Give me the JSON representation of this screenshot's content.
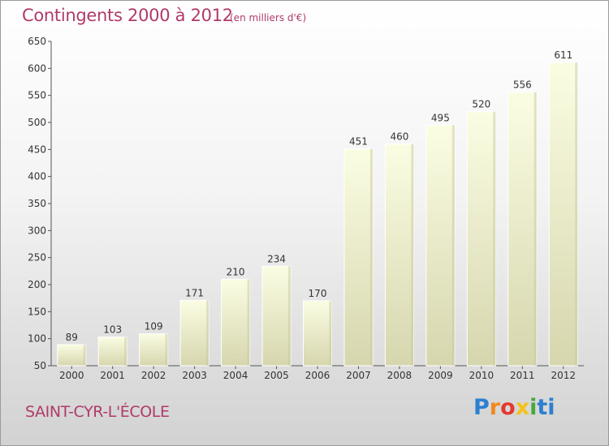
{
  "header": {
    "title": "Contingents 2000 à 2012",
    "subtitle": "(en milliers d'€)"
  },
  "commune": "SAINT-CYR-L'ÉCOLE",
  "brand": {
    "logo_text": "Proxiti",
    "colors": [
      "#2c7fd1",
      "#f08a1e",
      "#e23a2e",
      "#f4c21a",
      "#49a83c",
      "#2c7fd1"
    ]
  },
  "colors": {
    "title": "#b03a6a",
    "bar_top": "#fbfde3",
    "bar_bottom": "#d6d6ae"
  },
  "chart_data": {
    "type": "bar",
    "title": "Contingents 2000 à 2012",
    "subtitle": "(en milliers d'€)",
    "categories": [
      "2000",
      "2001",
      "2002",
      "2003",
      "2004",
      "2005",
      "2006",
      "2007",
      "2008",
      "2009",
      "2010",
      "2011",
      "2012"
    ],
    "values": [
      89,
      103,
      109,
      171,
      210,
      234,
      170,
      451,
      460,
      495,
      520,
      556,
      611
    ],
    "ylim": [
      50,
      650
    ],
    "yticks": [
      50,
      100,
      150,
      200,
      250,
      300,
      350,
      400,
      450,
      500,
      550,
      600,
      650
    ],
    "grid": false,
    "xlabel": "",
    "ylabel": ""
  }
}
